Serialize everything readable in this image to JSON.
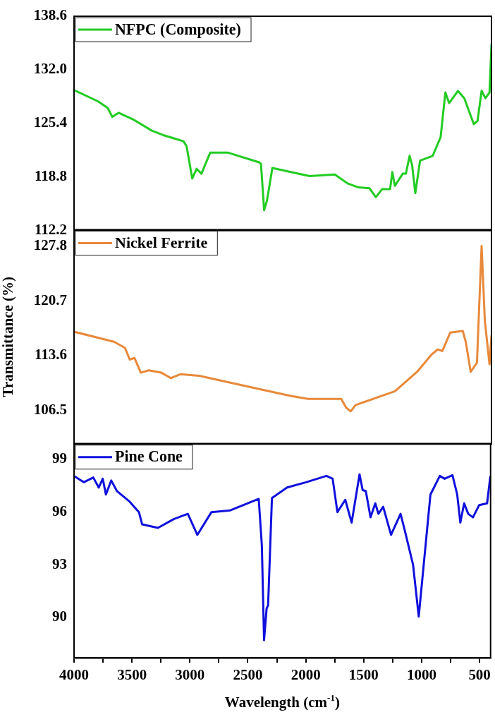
{
  "chart_data": [
    {
      "type": "line",
      "legend": "top left",
      "marker": "none",
      "xlim": [
        4000,
        405
      ],
      "tick_labels": "y",
      "ylim": [
        112.2,
        138.6
      ],
      "yticks": [
        {
          "value": 112.2,
          "label": "112.2"
        },
        {
          "value": 118.8,
          "label": "118.8"
        },
        {
          "value": 125.4,
          "label": "125.4"
        },
        {
          "value": 132.0,
          "label": "132.0"
        },
        {
          "value": 138.6,
          "label": "138.6"
        }
      ],
      "series": [
        {
          "name": "NFPC (Composite)",
          "color": "#22cc22",
          "x": [
            4000,
            3792,
            3710,
            3670,
            3615,
            3493,
            3330,
            3221,
            3058,
            3031,
            2982,
            2944,
            2903,
            2827,
            2678,
            2406,
            2390,
            2363,
            2338,
            2292,
            2134,
            1971,
            1754,
            1645,
            1550,
            1455,
            1401,
            1346,
            1278,
            1259,
            1237,
            1169,
            1142,
            1110,
            1088,
            1061,
            1020,
            911,
            843,
            802,
            770,
            694,
            639,
            557,
            525,
            490,
            457,
            422,
            405
          ],
          "values": [
            129.5,
            128.1,
            127.3,
            126.2,
            126.7,
            125.9,
            124.5,
            123.9,
            123.2,
            122.6,
            118.6,
            119.8,
            119.2,
            121.8,
            121.8,
            120.6,
            120.4,
            114.7,
            115.9,
            119.9,
            119.4,
            118.9,
            119.1,
            118.0,
            117.5,
            117.4,
            116.3,
            117.3,
            117.3,
            119.4,
            117.7,
            119.2,
            119.2,
            121.4,
            120.2,
            116.8,
            120.8,
            121.4,
            123.7,
            129.2,
            127.9,
            129.4,
            128.5,
            125.3,
            125.7,
            129.4,
            128.5,
            129.2,
            135.1
          ]
        }
      ]
    },
    {
      "type": "line",
      "legend": "top left",
      "marker": "none",
      "xlim": [
        4000,
        405
      ],
      "tick_labels": "y",
      "ylabel": "Transmittance (%)",
      "ylim": [
        102.2,
        129.9
      ],
      "yticks": [
        106.5,
        113.6,
        120.7,
        127.8
      ],
      "series": [
        {
          "name": "Nickel Ferrite",
          "color": "#e8893a",
          "x": [
            4000,
            3656,
            3561,
            3520,
            3479,
            3425,
            3357,
            3248,
            3166,
            3085,
            2922,
            2378,
            2134,
            1984,
            1699,
            1658,
            1617,
            1576,
            1236,
            1046,
            924,
            869,
            828,
            760,
            652,
            625,
            584,
            530,
            490,
            462,
            422,
            405
          ],
          "values": [
            116.7,
            115.4,
            114.6,
            113.1,
            113.3,
            111.4,
            111.7,
            111.4,
            110.7,
            111.2,
            111.0,
            109.2,
            108.4,
            108.0,
            108.0,
            106.9,
            106.4,
            107.2,
            109.0,
            111.5,
            113.7,
            114.4,
            114.2,
            116.6,
            116.8,
            115.3,
            111.5,
            112.7,
            127.8,
            118.1,
            112.5,
            116.2
          ]
        }
      ]
    },
    {
      "type": "line",
      "legend": "top left",
      "marker": "none",
      "xlim": [
        4000,
        405
      ],
      "xlabel": "Wavelength (cm$^{-1}$)",
      "xticks": [
        4000,
        {
          "value": 3750,
          "label": null
        },
        3500,
        {
          "value": 3250,
          "label": null
        },
        3000,
        {
          "value": 2750,
          "label": null
        },
        2500,
        {
          "value": 2250,
          "label": null
        },
        2000,
        {
          "value": 1750,
          "label": null
        },
        1500,
        {
          "value": 1250,
          "label": null
        },
        1000,
        {
          "value": 750,
          "label": null
        },
        500
      ],
      "ylim": [
        87.7,
        99.9
      ],
      "yticks": [
        90,
        93,
        96,
        99
      ],
      "series": [
        {
          "name": "Pine Cone",
          "color": "#1010dd",
          "x": [
            4000,
            3916,
            3834,
            3787,
            3752,
            3725,
            3679,
            3630,
            3521,
            3440,
            3412,
            3276,
            3140,
            3018,
            2936,
            2814,
            2651,
            2406,
            2379,
            2360,
            2338,
            2325,
            2292,
            2161,
            1998,
            1822,
            1768,
            1727,
            1659,
            1604,
            1536,
            1509,
            1482,
            1441,
            1400,
            1373,
            1332,
            1264,
            1182,
            1147,
            1074,
            1025,
            924,
            843,
            802,
            734,
            693,
            666,
            633,
            598,
            557,
            503,
            435,
            408
          ],
          "values": [
            98.06,
            97.7,
            97.97,
            97.4,
            97.9,
            97.0,
            97.8,
            97.2,
            96.6,
            96.0,
            95.3,
            95.1,
            95.6,
            95.9,
            94.7,
            96.0,
            96.1,
            96.75,
            94.1,
            88.7,
            90.5,
            90.7,
            96.8,
            97.4,
            97.7,
            98.06,
            97.9,
            96.0,
            96.7,
            95.4,
            98.15,
            97.25,
            97.2,
            95.7,
            96.5,
            95.9,
            96.3,
            94.7,
            95.9,
            95.0,
            93.0,
            90.05,
            97.0,
            98.06,
            97.9,
            98.1,
            97.0,
            95.4,
            96.5,
            95.9,
            95.7,
            96.4,
            96.5,
            98.0
          ]
        }
      ]
    }
  ]
}
